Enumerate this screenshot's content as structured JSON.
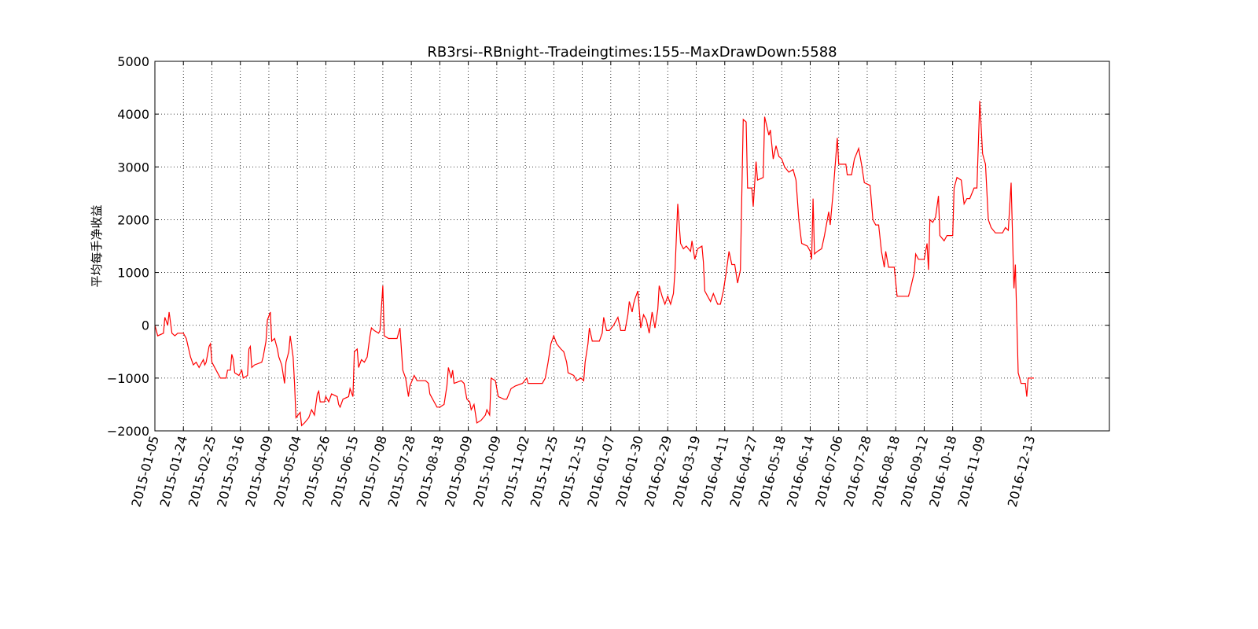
{
  "chart_data": {
    "type": "line",
    "title": "RB3rsi--RBnight--Tradeingtimes:155--MaxDrawDown:5588",
    "y_label": "平均每手净收益",
    "x": [
      0,
      2,
      6,
      7,
      9,
      10,
      12,
      14,
      16,
      20,
      22,
      25,
      27,
      29,
      31,
      34,
      35,
      36,
      38,
      39,
      40,
      43,
      46,
      50,
      51,
      53,
      54,
      55,
      56,
      59,
      61,
      62,
      65,
      66,
      67,
      68,
      70,
      75,
      76,
      78,
      79,
      81,
      82,
      84,
      86,
      87,
      89,
      91,
      92,
      94,
      95,
      97,
      98,
      99,
      102,
      103,
      105,
      108,
      110,
      112,
      114,
      115,
      116,
      119,
      120,
      122,
      124,
      128,
      129,
      130,
      132,
      136,
      137,
      139,
      140,
      142,
      143,
      145,
      147,
      149,
      151,
      152,
      154,
      157,
      158,
      160,
      161,
      164,
      170,
      172,
      174,
      176,
      178,
      179,
      182,
      184,
      190,
      192,
      193,
      195,
      198,
      200,
      203,
      205,
      206,
      208,
      209,
      210,
      215,
      217,
      219,
      221,
      222,
      224,
      226,
      229,
      232,
      233,
      235,
      236,
      239,
      241,
      245,
      247,
      250,
      253,
      258,
      261,
      262,
      265,
      272,
      274,
      276,
      278,
      280,
      282,
      285,
      287,
      289,
      290,
      294,
      296,
      299,
      301,
      302,
      304,
      305,
      307,
      309,
      312,
      314,
      315,
      317,
      319,
      322,
      325,
      327,
      330,
      332,
      333,
      335,
      336,
      337,
      339,
      341,
      343,
      345,
      347,
      349,
      351,
      353,
      354,
      356,
      358,
      360,
      362,
      364,
      365,
      367,
      369,
      371,
      373,
      376,
      377,
      379,
      381,
      384,
      385,
      386,
      388,
      390,
      392,
      395,
      397,
      399,
      401,
      403,
      405,
      407,
      409,
      411,
      412,
      413,
      415,
      416,
      419,
      420,
      422,
      423,
      427,
      428,
      431,
      432,
      434,
      436,
      438,
      440,
      442,
      445,
      448,
      450,
      452,
      454,
      458,
      460,
      461,
      462,
      463,
      465,
      468,
      470,
      473,
      474,
      476,
      479,
      480,
      485,
      486,
      489,
      491,
      494,
      496,
      498,
      502,
      504,
      506,
      508,
      510,
      512,
      513,
      515,
      519,
      521,
      523,
      529,
      530,
      533,
      534,
      536,
      540,
      542,
      543,
      544,
      546,
      548,
      550,
      551,
      554,
      556,
      560,
      561,
      563,
      566,
      568,
      570,
      572,
      575,
      577,
      579,
      581,
      583,
      585,
      587,
      590,
      595,
      597,
      599,
      601,
      603,
      604,
      606,
      608,
      611,
      612,
      613,
      617
    ],
    "series": [
      {
        "name": "RB3rsi",
        "color": "#ff0000",
        "values": [
          0,
          -200,
          -150,
          150,
          0,
          250,
          -150,
          -200,
          -150,
          -150,
          -250,
          -600,
          -750,
          -700,
          -800,
          -650,
          -750,
          -700,
          -400,
          -350,
          -700,
          -850,
          -1000,
          -1000,
          -850,
          -850,
          -550,
          -650,
          -900,
          -950,
          -850,
          -1000,
          -950,
          -450,
          -400,
          -800,
          -750,
          -700,
          -600,
          -300,
          100,
          250,
          -300,
          -250,
          -450,
          -600,
          -750,
          -1100,
          -700,
          -500,
          -200,
          -600,
          -1100,
          -1750,
          -1650,
          -1900,
          -1850,
          -1750,
          -1600,
          -1700,
          -1300,
          -1250,
          -1450,
          -1450,
          -1350,
          -1450,
          -1300,
          -1350,
          -1500,
          -1550,
          -1400,
          -1350,
          -1200,
          -1350,
          -500,
          -450,
          -800,
          -650,
          -700,
          -600,
          -200,
          -50,
          -100,
          -150,
          -100,
          750,
          -200,
          -250,
          -250,
          -50,
          -850,
          -1000,
          -1350,
          -1150,
          -950,
          -1050,
          -1050,
          -1100,
          -1300,
          -1400,
          -1550,
          -1550,
          -1500,
          -1150,
          -800,
          -1000,
          -850,
          -1100,
          -1050,
          -1100,
          -1400,
          -1450,
          -1600,
          -1500,
          -1850,
          -1800,
          -1700,
          -1600,
          -1700,
          -1000,
          -1050,
          -1350,
          -1400,
          -1400,
          -1200,
          -1150,
          -1100,
          -1000,
          -1100,
          -1100,
          -1100,
          -1000,
          -700,
          -350,
          -200,
          -350,
          -450,
          -500,
          -700,
          -900,
          -950,
          -1050,
          -1000,
          -1050,
          -700,
          -350,
          -50,
          -300,
          -300,
          -300,
          -150,
          150,
          -100,
          -100,
          0,
          150,
          -100,
          -100,
          200,
          450,
          250,
          400,
          500,
          650,
          -50,
          200,
          100,
          -150,
          250,
          -50,
          300,
          750,
          550,
          400,
          550,
          400,
          600,
          1000,
          2300,
          1550,
          1450,
          1500,
          1400,
          1600,
          1250,
          1450,
          1500,
          1200,
          650,
          550,
          450,
          600,
          400,
          400,
          650,
          1000,
          1400,
          1150,
          1150,
          800,
          1050,
          2500,
          3900,
          3850,
          2600,
          2600,
          2250,
          3100,
          2750,
          2800,
          3950,
          3600,
          3700,
          3150,
          3400,
          3200,
          3150,
          3000,
          2900,
          2950,
          2750,
          2000,
          1550,
          1500,
          1400,
          1250,
          2400,
          1350,
          1400,
          1450,
          1700,
          2150,
          1900,
          2500,
          3550,
          3050,
          3050,
          2850,
          2850,
          3150,
          3350,
          3050,
          2700,
          2650,
          2000,
          1900,
          1900,
          1400,
          1100,
          1400,
          1100,
          1100,
          550,
          550,
          550,
          650,
          1000,
          1350,
          1250,
          1250,
          1550,
          1050,
          2000,
          1950,
          2050,
          2450,
          1700,
          1600,
          1700,
          1700,
          2600,
          2800,
          2750,
          2300,
          2400,
          2400,
          2600,
          2600,
          4250,
          3250,
          3050,
          2000,
          1850,
          1750,
          1750,
          1850,
          1800,
          2700,
          700,
          1150,
          -900,
          -1100,
          -1100,
          -1350,
          -1000,
          -1000
        ]
      }
    ],
    "xlim": [
      0,
      670
    ],
    "xticks": [
      {
        "value": 0,
        "label": "2015-01-05"
      },
      {
        "value": 20,
        "label": "2015-01-24"
      },
      {
        "value": 40,
        "label": "2015-02-25"
      },
      {
        "value": 60,
        "label": "2015-03-16"
      },
      {
        "value": 80,
        "label": "2015-04-09"
      },
      {
        "value": 100,
        "label": "2015-05-04"
      },
      {
        "value": 120,
        "label": "2015-05-26"
      },
      {
        "value": 140,
        "label": "2015-06-15"
      },
      {
        "value": 160,
        "label": "2015-07-08"
      },
      {
        "value": 180,
        "label": "2015-07-28"
      },
      {
        "value": 200,
        "label": "2015-08-18"
      },
      {
        "value": 220,
        "label": "2015-09-09"
      },
      {
        "value": 240,
        "label": "2015-10-09"
      },
      {
        "value": 260,
        "label": "2015-11-02"
      },
      {
        "value": 280,
        "label": "2015-11-25"
      },
      {
        "value": 300,
        "label": "2015-12-15"
      },
      {
        "value": 320,
        "label": "2016-01-07"
      },
      {
        "value": 340,
        "label": "2016-01-30"
      },
      {
        "value": 360,
        "label": "2016-02-29"
      },
      {
        "value": 380,
        "label": "2016-03-19"
      },
      {
        "value": 400,
        "label": "2016-04-11"
      },
      {
        "value": 420,
        "label": "2016-04-27"
      },
      {
        "value": 440,
        "label": "2016-05-18"
      },
      {
        "value": 460,
        "label": "2016-06-14"
      },
      {
        "value": 480,
        "label": "2016-07-06"
      },
      {
        "value": 500,
        "label": "2016-07-28"
      },
      {
        "value": 520,
        "label": "2016-08-18"
      },
      {
        "value": 540,
        "label": "2016-09-12"
      },
      {
        "value": 560,
        "label": "2016-10-18"
      },
      {
        "value": 580,
        "label": "2016-11-09"
      },
      {
        "value": 615,
        "label": "2016-12-13"
      }
    ],
    "ylim": [
      -2000,
      5000
    ],
    "yticks": [
      {
        "value": -2000,
        "label": "−2000"
      },
      {
        "value": -1000,
        "label": "−1000"
      },
      0,
      1000,
      2000,
      3000,
      4000,
      5000
    ],
    "grid": true
  }
}
